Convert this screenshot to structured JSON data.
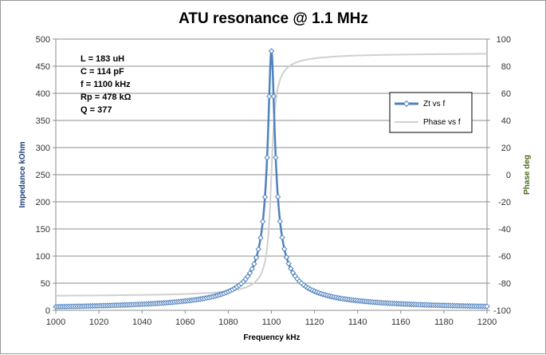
{
  "chart_data": {
    "type": "line",
    "title": "ATU resonance @ 1.1 MHz",
    "xlabel": "Frequency  kHz",
    "ylabel": "Impedance  kOhm",
    "y2label": "Phase  deg",
    "xlim": [
      1000,
      1200
    ],
    "ylim": [
      0,
      500
    ],
    "y2lim": [
      -100,
      100
    ],
    "x_ticks": [
      "1000",
      "1020",
      "1040",
      "1060",
      "1080",
      "1100",
      "1120",
      "1140",
      "1160",
      "1180",
      "1200"
    ],
    "y_ticks": [
      "0",
      "50",
      "100",
      "150",
      "200",
      "250",
      "300",
      "350",
      "400",
      "450",
      "500"
    ],
    "y2_ticks": [
      "-100",
      "-80",
      "-60",
      "-40",
      "-20",
      "0",
      "20",
      "40",
      "60",
      "80",
      "100"
    ],
    "grid": "horizontal",
    "legend_position": "right",
    "annotations": [
      "L = 183  uH",
      "C = 114  pF",
      "f =  1100  kHz",
      "Rp = 478  kΩ",
      "Q = 377"
    ],
    "resonance": {
      "f_kHz": 1100,
      "Rp_kOhm": 478,
      "Q": 377
    },
    "series": [
      {
        "name": "Zt vs f",
        "axis": "left",
        "color": "#4f81bd",
        "marker": "diamond",
        "model": "parallel-rlc"
      },
      {
        "name": "Phase vs f",
        "axis": "right",
        "color": "#d0d0d0",
        "marker": "none",
        "model": "parallel-rlc"
      }
    ],
    "zt_points": [
      [
        1000,
        5.9
      ],
      [
        1040,
        9.0
      ],
      [
        1060,
        12.2
      ],
      [
        1080,
        24.0
      ],
      [
        1090,
        47.5
      ],
      [
        1095,
        93.6
      ],
      [
        1098,
        223
      ],
      [
        1100,
        474
      ],
      [
        1102,
        227
      ],
      [
        1105,
        96
      ],
      [
        1110,
        48.5
      ],
      [
        1120,
        24.4
      ],
      [
        1140,
        12.3
      ],
      [
        1160,
        8.3
      ],
      [
        1200,
        5.1
      ]
    ],
    "phase_points": [
      [
        1000,
        -88.6
      ],
      [
        1050,
        -87.6
      ],
      [
        1080,
        -84.4
      ],
      [
        1090,
        -80.3
      ],
      [
        1095,
        -76.5
      ],
      [
        1098,
        -61.9
      ],
      [
        1100,
        0
      ],
      [
        1102,
        61.7
      ],
      [
        1105,
        78.5
      ],
      [
        1110,
        84.4
      ],
      [
        1150,
        88.3
      ],
      [
        1200,
        88.9
      ]
    ]
  }
}
